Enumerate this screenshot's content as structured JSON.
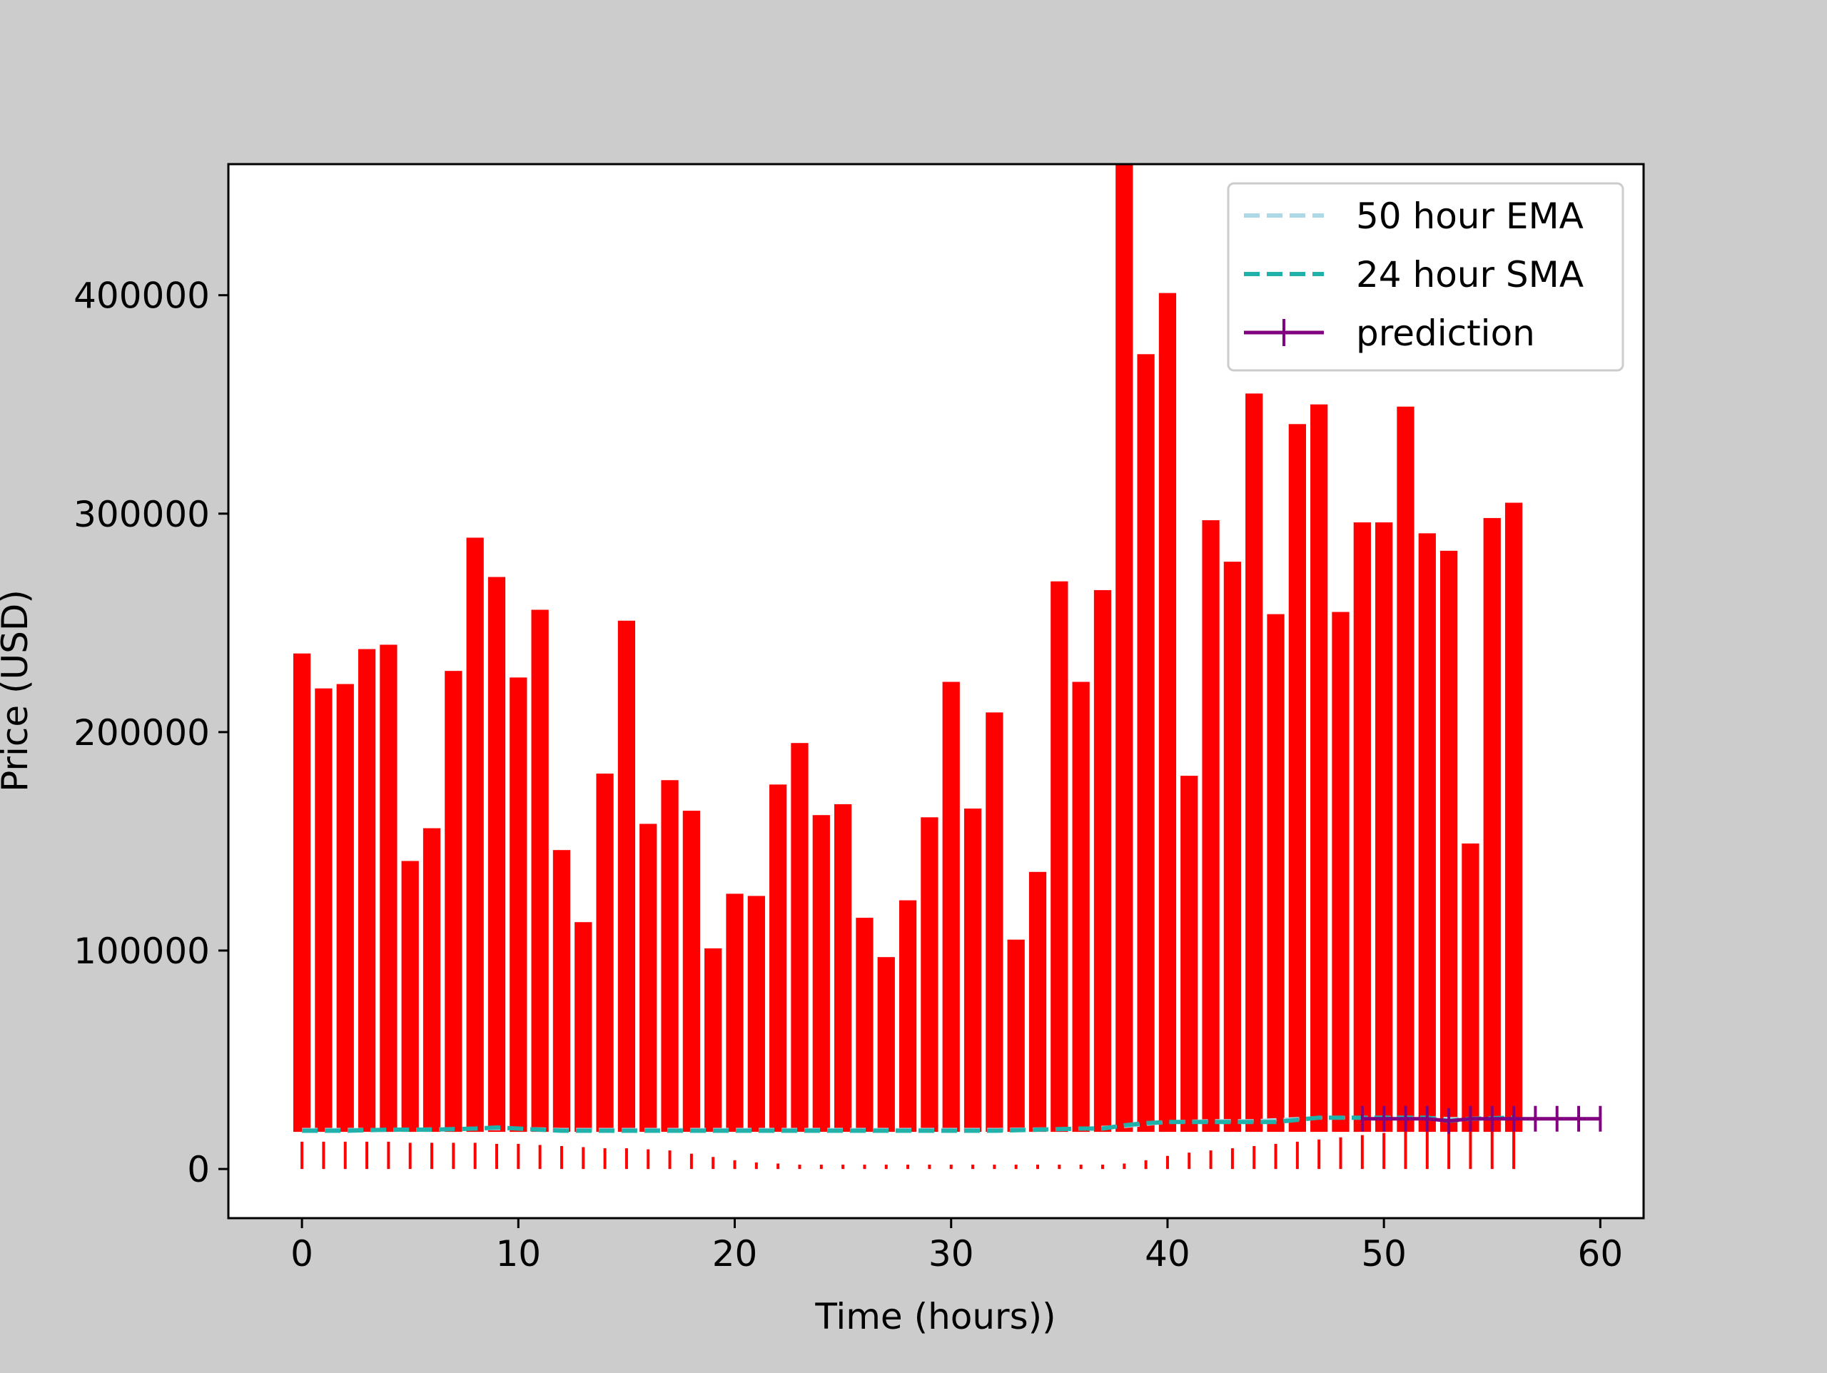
{
  "chart_data": {
    "type": "bar",
    "title": "",
    "xlabel": "Time (hours))",
    "ylabel": "Price (USD)",
    "xlim": [
      -3.4,
      62
    ],
    "ylim": [
      -22500,
      460000
    ],
    "xticks": [
      0,
      10,
      20,
      30,
      40,
      50,
      60
    ],
    "yticks": [
      0,
      100000,
      200000,
      300000,
      400000
    ],
    "grid": false,
    "legend_position": "top-right",
    "colors": {
      "bars": "#ff0000",
      "ema": "#add8e6",
      "sma": "#20b2aa",
      "prediction": "#800080",
      "figure_background": "#cccccc",
      "axes_background": "#ffffff"
    },
    "legend": [
      {
        "label": "50 hour EMA",
        "style": "dashed",
        "color": "#add8e6"
      },
      {
        "label": "24 hour SMA",
        "style": "dashed",
        "color": "#20b2aa"
      },
      {
        "label": "prediction",
        "style": "solid-plus",
        "color": "#800080"
      }
    ],
    "bars": {
      "x": [
        0,
        1,
        2,
        3,
        4,
        5,
        6,
        7,
        8,
        9,
        10,
        11,
        12,
        13,
        14,
        15,
        16,
        17,
        18,
        19,
        20,
        21,
        22,
        23,
        24,
        25,
        26,
        27,
        28,
        29,
        30,
        31,
        32,
        33,
        34,
        35,
        36,
        37,
        38,
        39,
        40,
        41,
        42,
        43,
        44,
        45,
        46,
        47,
        48,
        49,
        50,
        51,
        52,
        53,
        54,
        55,
        56
      ],
      "bottom": [
        17000,
        17000,
        17000,
        17000,
        17000,
        17000,
        17000,
        17000,
        17000,
        17000,
        17000,
        17000,
        17000,
        17000,
        17000,
        17000,
        17000,
        17000,
        17000,
        17000,
        17000,
        17000,
        17000,
        17000,
        17000,
        17000,
        17000,
        17000,
        17000,
        17000,
        17000,
        17000,
        17000,
        17000,
        17000,
        17000,
        17000,
        17000,
        17000,
        17000,
        17000,
        17000,
        17000,
        17000,
        17000,
        17000,
        17000,
        17000,
        17000,
        17000,
        17000,
        17000,
        17000,
        17000,
        17000,
        17000,
        17000
      ],
      "top": [
        236000,
        220000,
        222000,
        238000,
        240000,
        141000,
        156000,
        228000,
        289000,
        271000,
        225000,
        256000,
        146000,
        113000,
        181000,
        251000,
        158000,
        178000,
        164000,
        101000,
        126000,
        125000,
        176000,
        195000,
        162000,
        167000,
        115000,
        97000,
        123000,
        161000,
        223000,
        165000,
        209000,
        105000,
        136000,
        269000,
        223000,
        265000,
        460000,
        373000,
        401000,
        180000,
        297000,
        278000,
        355000,
        254000,
        341000,
        350000,
        255000,
        296000,
        296000,
        349000,
        291000,
        283000,
        149000,
        298000,
        305000
      ]
    },
    "volume_ticks": {
      "x": [
        0,
        1,
        2,
        3,
        4,
        5,
        6,
        7,
        8,
        9,
        10,
        11,
        12,
        13,
        14,
        15,
        16,
        17,
        18,
        19,
        20,
        21,
        22,
        23,
        24,
        25,
        26,
        27,
        28,
        29,
        30,
        31,
        32,
        33,
        34,
        35,
        36,
        37,
        38,
        39,
        40,
        41,
        42,
        43,
        44,
        45,
        46,
        47,
        48,
        49,
        50,
        51,
        52,
        53,
        54,
        55,
        56
      ],
      "values": [
        12500,
        12500,
        12500,
        12500,
        12500,
        12000,
        12000,
        12000,
        12000,
        11500,
        11500,
        11000,
        10500,
        10000,
        9500,
        9500,
        9000,
        8500,
        7000,
        5500,
        4000,
        3000,
        2500,
        2000,
        2000,
        2000,
        2000,
        2000,
        2000,
        2000,
        2000,
        2000,
        2000,
        2000,
        2000,
        2000,
        2000,
        2000,
        2500,
        4000,
        6000,
        7500,
        8500,
        9500,
        10500,
        11500,
        12500,
        13500,
        14500,
        15500,
        16500,
        17500,
        18500,
        19500,
        20000,
        20500,
        21000
      ]
    },
    "series": [
      {
        "name": "50 hour EMA",
        "x": [
          0,
          4,
          8,
          10,
          12,
          16,
          20,
          24,
          28,
          32,
          36,
          38,
          40,
          42,
          44,
          46,
          47,
          48,
          50,
          52,
          53,
          54,
          56
        ],
        "values": [
          18000,
          18000,
          18500,
          18500,
          18000,
          18000,
          18000,
          18000,
          18000,
          18000,
          18500,
          19500,
          21500,
          22000,
          22000,
          23000,
          23500,
          23500,
          23500,
          23500,
          23000,
          23000,
          23500
        ]
      },
      {
        "name": "24 hour SMA",
        "x": [
          0,
          2,
          4,
          6,
          8,
          9,
          10,
          12,
          14,
          16,
          18,
          20,
          22,
          24,
          26,
          28,
          30,
          32,
          34,
          36,
          37,
          38,
          39,
          40,
          42,
          44,
          45,
          46,
          47,
          48,
          50,
          52,
          53,
          54,
          56
        ],
        "values": [
          17500,
          17500,
          18000,
          18000,
          18500,
          19000,
          18500,
          17500,
          17500,
          17500,
          17500,
          17500,
          17500,
          17500,
          17500,
          17500,
          17500,
          17500,
          18000,
          18500,
          18500,
          20000,
          21000,
          21500,
          21500,
          21500,
          21500,
          22500,
          23500,
          23500,
          23500,
          23500,
          22000,
          23000,
          23500
        ]
      },
      {
        "name": "prediction",
        "x": [
          49,
          50,
          51,
          52,
          53,
          54,
          55,
          56,
          57,
          58,
          59,
          60
        ],
        "values": [
          23000,
          23000,
          23000,
          23000,
          22000,
          23000,
          23000,
          23000,
          23000,
          23000,
          23000,
          23000
        ]
      }
    ]
  }
}
